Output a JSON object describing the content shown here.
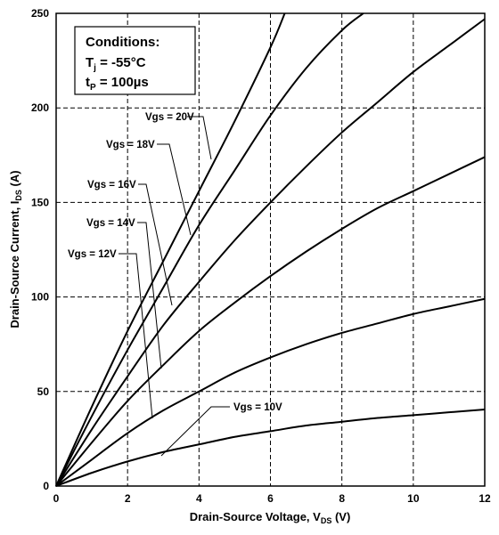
{
  "chart_data": {
    "type": "line",
    "xlabel": {
      "main": "Drain-Source Voltage, V",
      "sub": "DS",
      "unit": " (V)"
    },
    "ylabel": {
      "main": "Drain-Source Current, I",
      "sub": "DS",
      "unit": " (A)"
    },
    "xlim": [
      0,
      12
    ],
    "ylim": [
      0,
      250
    ],
    "x_ticks": [
      0,
      2,
      4,
      6,
      8,
      10,
      12
    ],
    "y_ticks": [
      0,
      50,
      100,
      150,
      200,
      250
    ],
    "grid": true,
    "conditions": {
      "title": "Conditions:",
      "tj_symbol": "T",
      "tj_sub": "j",
      "tj_value": " = -55°C",
      "tp_symbol": "t",
      "tp_sub": "P",
      "tp_value": " = 100µs"
    },
    "series": [
      {
        "name": "Vgs = 20V",
        "x": [
          0,
          1,
          2,
          3,
          4,
          5,
          6,
          6.4
        ],
        "y": [
          0,
          42,
          82,
          119,
          156,
          193,
          232,
          250
        ]
      },
      {
        "name": "Vgs = 18V",
        "x": [
          0,
          1,
          2,
          3,
          4,
          5,
          6,
          7,
          8,
          8.6
        ],
        "y": [
          0,
          37,
          72,
          105,
          138,
          167,
          196,
          221,
          241,
          250
        ]
      },
      {
        "name": "Vgs = 16V",
        "x": [
          0,
          1,
          2,
          3,
          4,
          5,
          6,
          7,
          8,
          9,
          10,
          11,
          12
        ],
        "y": [
          0,
          30,
          58,
          85,
          108,
          130,
          150,
          169,
          187,
          203,
          219,
          233,
          247
        ]
      },
      {
        "name": "Vgs = 14V",
        "x": [
          0,
          1,
          2,
          3,
          4,
          5,
          6,
          7,
          8,
          9,
          10,
          11,
          12
        ],
        "y": [
          0,
          23,
          45,
          64,
          82,
          97,
          111,
          124,
          136,
          147,
          156,
          165,
          174
        ]
      },
      {
        "name": "Vgs = 12V",
        "x": [
          0,
          1,
          2,
          3,
          4,
          5,
          6,
          7,
          8,
          9,
          10,
          11,
          12
        ],
        "y": [
          0,
          14,
          28,
          40,
          50,
          60,
          68,
          75,
          81,
          86,
          91,
          95,
          99
        ]
      },
      {
        "name": "Vgs = 10V",
        "x": [
          0,
          1,
          2,
          3,
          4,
          5,
          6,
          7,
          8,
          9,
          10,
          11,
          12
        ],
        "y": [
          0,
          7,
          13,
          18,
          22,
          26,
          29,
          32,
          34,
          36,
          37.5,
          39,
          40.5
        ]
      }
    ]
  }
}
